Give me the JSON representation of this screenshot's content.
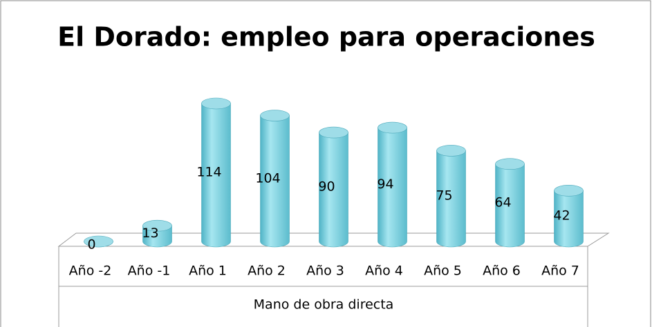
{
  "chart_data": {
    "type": "bar3d",
    "title": "El Dorado: empleo para operaciones",
    "categories": [
      "Año -2",
      "Año -1",
      "Año 1",
      "Año 2",
      "Año 3",
      "Año 4",
      "Año 5",
      "Año 6",
      "Año 7"
    ],
    "values": [
      0,
      13,
      114,
      104,
      90,
      94,
      75,
      64,
      42
    ],
    "color": "#7fd4e2",
    "xlabel": "Mano de obra directa"
  }
}
